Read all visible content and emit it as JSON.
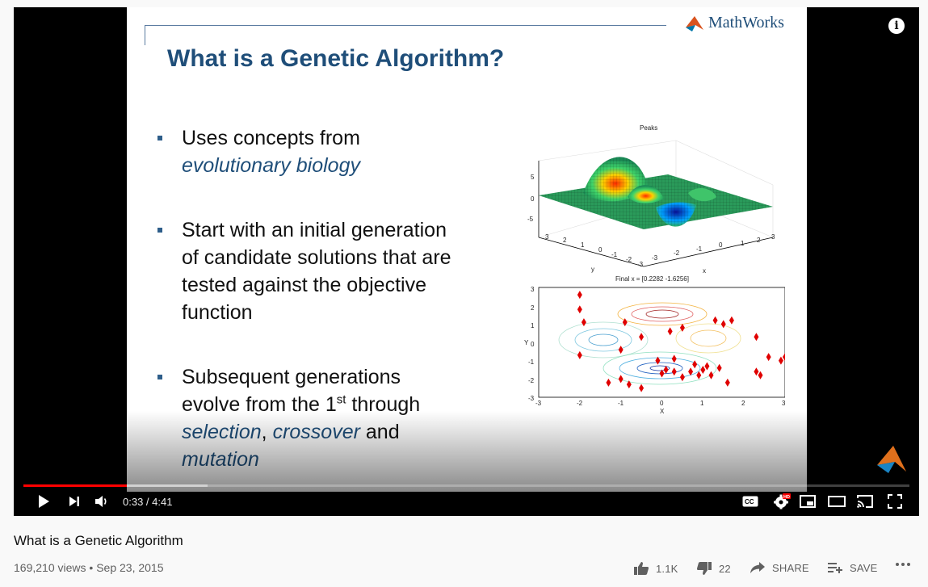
{
  "slide": {
    "brand": "MathWorks",
    "title": "What is a Genetic Algorithm?",
    "bullet1": {
      "line1": "Uses concepts from",
      "line2": "evolutionary biology"
    },
    "bullet2": {
      "line1": "Start with an initial generation",
      "line2": "of candidate solutions that are",
      "line3": "tested against the objective",
      "line4": "function"
    },
    "bullet3": {
      "line1": "Subsequent generations",
      "line2a": "evolve from the 1",
      "sup": "st",
      "line2b": " through",
      "sel": "selection",
      "comma": ", ",
      "cross": "crossover",
      "and": " and",
      "mut": "mutation"
    },
    "plot1": {
      "title": "Peaks",
      "zticks": [
        "5",
        "0",
        "-5"
      ],
      "yticks": [
        "3",
        "2",
        "1",
        "0",
        "-1",
        "-2",
        "-3"
      ],
      "xticks": [
        "-3",
        "-2",
        "-1",
        "0",
        "1",
        "2",
        "3"
      ],
      "ylabel": "y",
      "xlabel": "x"
    },
    "plot2": {
      "title": "Final x = [0.2282 -1.6256]",
      "ylabel": "Y",
      "xlabel": "X"
    }
  },
  "chart_data": {
    "type": "scatter",
    "title": "Final x = [0.2282 -1.6256]",
    "xlabel": "X",
    "ylabel": "Y",
    "xlim": [
      -3,
      3
    ],
    "ylim": [
      -3,
      3
    ],
    "x": [
      -2,
      -2,
      -1.9,
      -2,
      -0.9,
      -1.0,
      -1.3,
      -1.0,
      -0.5,
      0.2,
      0.5,
      1.3,
      1.5,
      1.7,
      2.3,
      2.4,
      2.6,
      3.0,
      2.9,
      2.3,
      0.8,
      1.0,
      1.2,
      1.4,
      1.6,
      0.0,
      0.1,
      0.3,
      0.5,
      0.7,
      0.9,
      1.1,
      0.3,
      -0.1,
      -0.8,
      -0.5
    ],
    "y": [
      2.6,
      1.8,
      1.1,
      -0.7,
      1.1,
      -0.4,
      -2.2,
      -2.0,
      0.3,
      0.6,
      0.8,
      1.2,
      1.0,
      1.2,
      0.3,
      -1.8,
      -0.8,
      -0.8,
      -1.0,
      -1.6,
      -1.2,
      -1.5,
      -1.8,
      -1.4,
      -2.2,
      -1.7,
      -1.5,
      -1.6,
      -1.9,
      -1.6,
      -1.8,
      -1.3,
      -0.9,
      -1.0,
      -2.3,
      -2.5
    ],
    "marker": "red diamond"
  },
  "player": {
    "current_time": "0:33",
    "separator": " / ",
    "duration": "4:41",
    "progress_played": 0.117,
    "progress_buffered": 0.208,
    "hd_badge": "HD"
  },
  "video": {
    "title": "What is a Genetic Algorithm",
    "views": "169,210 views",
    "dot": " • ",
    "date": "Sep 23, 2015",
    "likes": "1.1K",
    "dislikes": "22",
    "share_label": "SHARE",
    "save_label": "SAVE"
  },
  "colors": {
    "accent": "#ff0000",
    "slide_title": "#1f4e79",
    "marker": "#e00000"
  }
}
